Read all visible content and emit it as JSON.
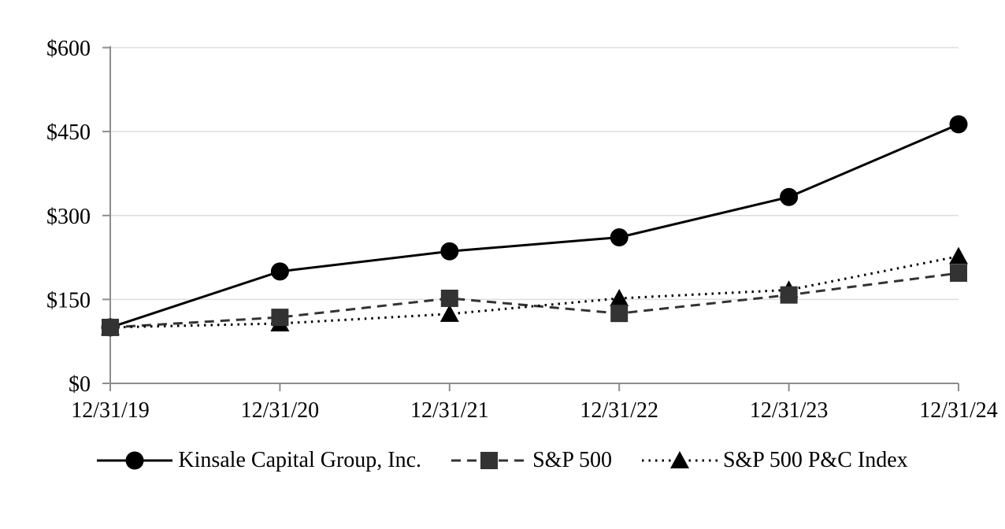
{
  "chart_data": {
    "type": "line",
    "title": "",
    "xlabel": "",
    "ylabel": "",
    "categories": [
      "12/31/19",
      "12/31/20",
      "12/31/21",
      "12/31/22",
      "12/31/23",
      "12/31/24"
    ],
    "series": [
      {
        "id": "kinsale",
        "name": "Kinsale Capital Group, Inc.",
        "values": [
          100,
          200,
          236,
          261,
          333,
          463
        ],
        "line_style": "solid",
        "marker": "circle",
        "color": "#000000"
      },
      {
        "id": "sp500",
        "name": "S&P 500",
        "values": [
          100,
          118,
          152,
          125,
          158,
          197
        ],
        "line_style": "dashed",
        "marker": "square",
        "color": "#333333"
      },
      {
        "id": "sp500-pc-index",
        "name": "S&P 500 P&C Index",
        "values": [
          100,
          107,
          124,
          152,
          167,
          227
        ],
        "line_style": "dotted",
        "marker": "triangle",
        "color": "#000000"
      }
    ],
    "ylim": [
      0,
      600
    ],
    "y_ticks": [
      0,
      150,
      300,
      450,
      600
    ],
    "y_tick_labels": [
      "$0",
      "$150",
      "$300",
      "$450",
      "$600"
    ],
    "grid": "horizontal",
    "legend_position": "bottom",
    "colors": {
      "axis": "#8c8c8c",
      "gridline": "#dedede",
      "text": "#000000",
      "background": "#ffffff"
    }
  }
}
